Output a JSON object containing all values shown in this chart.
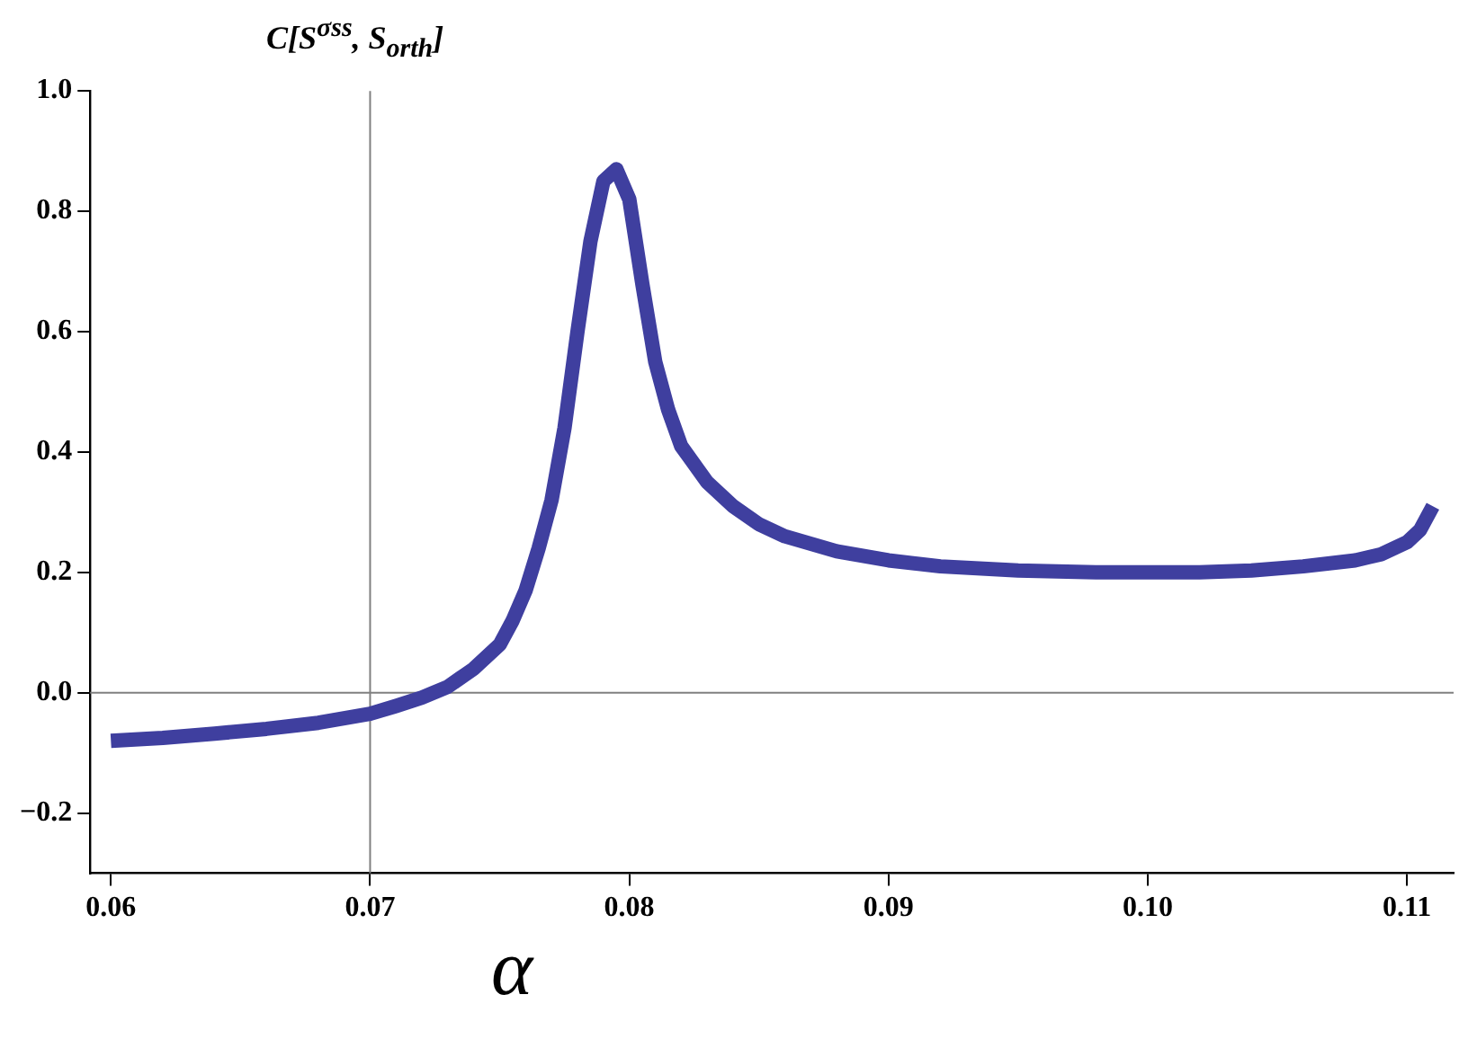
{
  "chart_data": {
    "type": "line",
    "title": "C[S$^{σss}$, S$_{orth}$]",
    "xlabel": "α",
    "x": [
      0.06,
      0.062,
      0.064,
      0.066,
      0.068,
      0.07,
      0.071,
      0.072,
      0.073,
      0.074,
      0.075,
      0.0755,
      0.076,
      0.0765,
      0.077,
      0.0775,
      0.078,
      0.0785,
      0.079,
      0.0795,
      0.08,
      0.0805,
      0.081,
      0.0815,
      0.082,
      0.083,
      0.084,
      0.085,
      0.086,
      0.088,
      0.09,
      0.092,
      0.095,
      0.098,
      0.1,
      0.102,
      0.104,
      0.106,
      0.108,
      0.109,
      0.11,
      0.1105,
      0.111
    ],
    "series": [
      {
        "color": "#3f3f9f",
        "values": [
          -0.08,
          -0.075,
          -0.068,
          -0.06,
          -0.05,
          -0.035,
          -0.022,
          -0.008,
          0.01,
          0.04,
          0.08,
          0.12,
          0.17,
          0.24,
          0.32,
          0.44,
          0.6,
          0.75,
          0.85,
          0.87,
          0.82,
          0.68,
          0.55,
          0.47,
          0.41,
          0.35,
          0.31,
          0.28,
          0.26,
          0.235,
          0.22,
          0.21,
          0.203,
          0.2,
          0.2,
          0.2,
          0.203,
          0.21,
          0.22,
          0.23,
          0.25,
          0.27,
          0.31
        ]
      }
    ],
    "xlim": [
      0.0592,
      0.1118
    ],
    "ylim": [
      -0.3,
      1.0
    ],
    "xticks": [
      0.06,
      0.07,
      0.08,
      0.09,
      {
        "value": 0.1,
        "label": "0.10"
      },
      0.11
    ],
    "yticks": [
      {
        "value": -0.2,
        "label": "−0.2"
      },
      {
        "value": 0,
        "label": "0.0"
      },
      0.2,
      0.4,
      0.6,
      0.8,
      {
        "value": 1,
        "label": "1.0"
      }
    ],
    "ref_lines": [
      {
        "axis": "x",
        "value": 0.07,
        "color": "#808080"
      },
      {
        "axis": "y",
        "value": 0,
        "color": "#808080"
      }
    ],
    "grid": false,
    "legend": false,
    "marker": "none",
    "line_style": "solid"
  }
}
